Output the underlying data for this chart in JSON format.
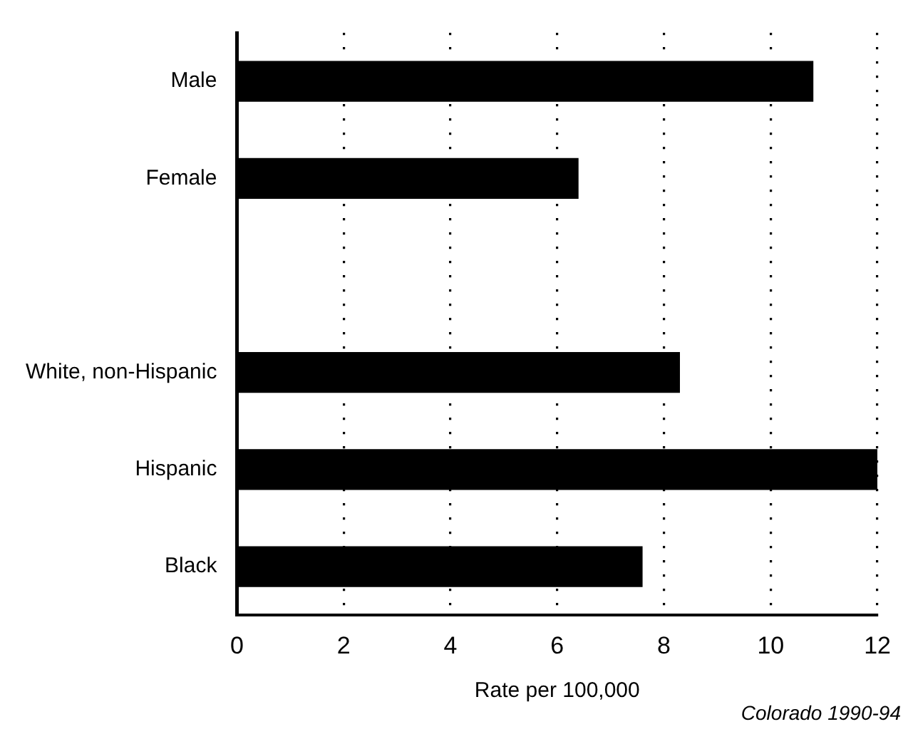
{
  "chart_data": {
    "type": "bar",
    "orientation": "horizontal",
    "categories": [
      "Male",
      "Female",
      null,
      "White, non-Hispanic",
      "Hispanic",
      "Black"
    ],
    "values": [
      10.8,
      6.4,
      null,
      8.3,
      12.0,
      7.6
    ],
    "color": "#000000",
    "xlabel": "Rate per 100,000",
    "xlim": [
      0,
      12
    ],
    "xticks": [
      0,
      2,
      4,
      6,
      8,
      10,
      12
    ],
    "grid": "x",
    "legend": false,
    "annotations": [
      "Colorado 1990-94"
    ]
  }
}
